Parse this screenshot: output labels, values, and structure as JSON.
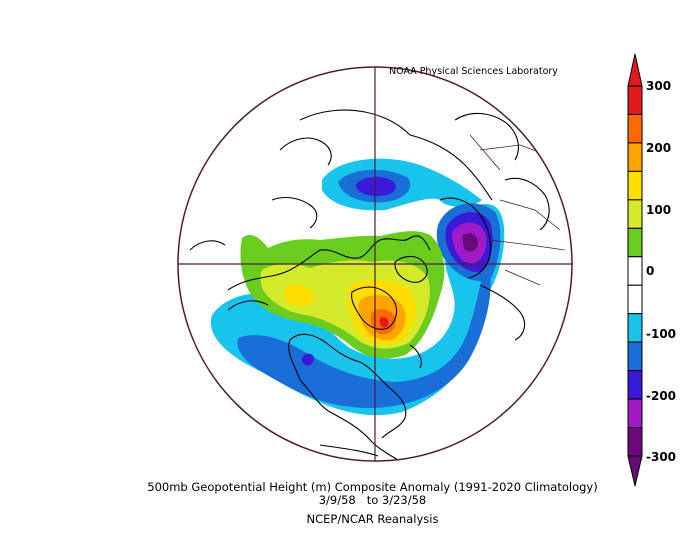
{
  "credit": "NOAA Physical Sciences Laboratory",
  "title": "500mb Geopotential Height (m) Composite Anomaly (1991-2020 Climatology)",
  "date_range": "3/9/58   to 3/23/58",
  "source": "NCEP/NCAR Reanalysis",
  "colorbar": {
    "labels": [
      "300",
      "200",
      "100",
      "0",
      "-100",
      "-200",
      "-300"
    ],
    "colors": [
      "#e31a1c",
      "#ff6a00",
      "#ffa500",
      "#ffdd00",
      "#d4ea2a",
      "#6acd1e",
      "#ffffff",
      "#ffffff",
      "#18c4ec",
      "#1a6ed8",
      "#3a1ad8",
      "#a01ac8",
      "#6a0a7a"
    ]
  },
  "map": {
    "projection": "north-polar-stereographic",
    "boundary_color": "#4d1a3d"
  }
}
